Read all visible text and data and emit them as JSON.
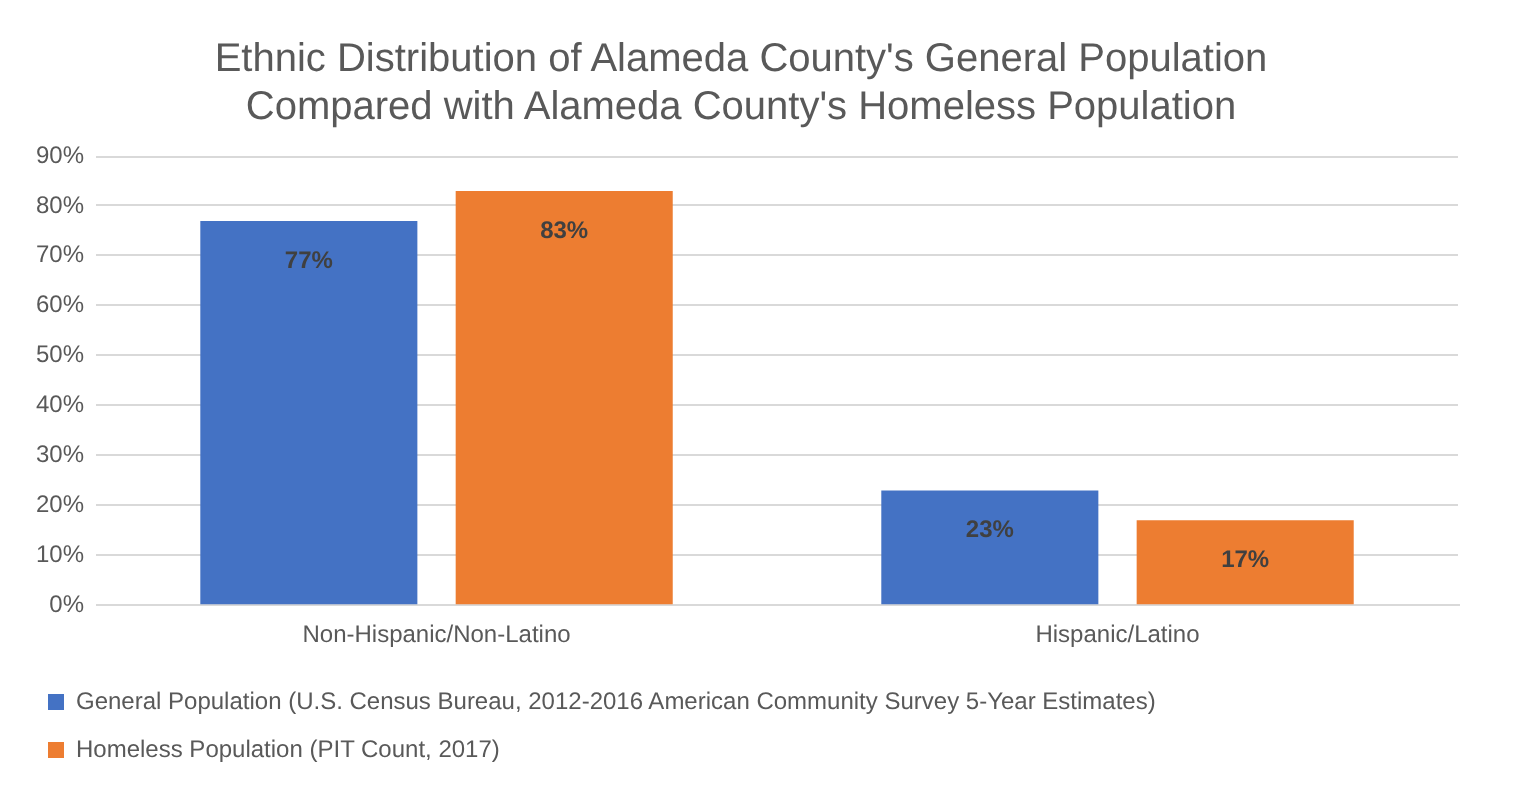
{
  "chart_data": {
    "type": "bar",
    "title": [
      "Ethnic Distribution of Alameda County's General Population",
      "Compared with Alameda County's Homeless Population"
    ],
    "categories": [
      "Non-Hispanic/Non-Latino",
      "Hispanic/Latino"
    ],
    "series": [
      {
        "name": "General Population (U.S. Census Bureau, 2012-2016 American Community Survey 5-Year Estimates)",
        "color": "#4472c4",
        "values": [
          77,
          23
        ],
        "value_labels": [
          "77%",
          "23%"
        ]
      },
      {
        "name": "Homeless Population (PIT Count, 2017)",
        "color": "#ed7d31",
        "values": [
          83,
          17
        ],
        "value_labels": [
          "83%",
          "17%"
        ]
      }
    ],
    "ylim": [
      0,
      90
    ],
    "yticks": [
      {
        "value": 0,
        "label": "0%"
      },
      {
        "value": 10,
        "label": "10%"
      },
      {
        "value": 20,
        "label": "20%"
      },
      {
        "value": 30,
        "label": "30%"
      },
      {
        "value": 40,
        "label": "40%"
      },
      {
        "value": 50,
        "label": "50%"
      },
      {
        "value": 60,
        "label": "60%"
      },
      {
        "value": 70,
        "label": "70%"
      },
      {
        "value": 80,
        "label": "80%"
      },
      {
        "value": 90,
        "label": "90%"
      }
    ],
    "grid": "y",
    "legend": "bottom"
  }
}
